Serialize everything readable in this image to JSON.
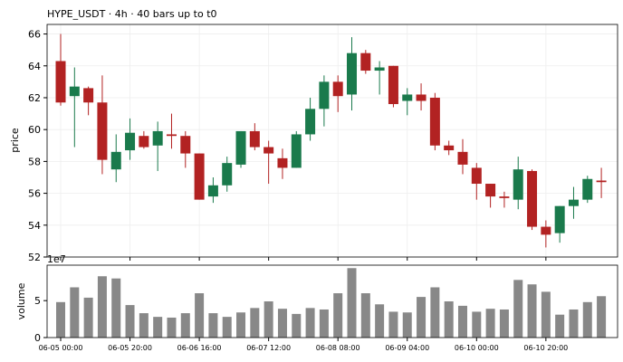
{
  "chart_data": [
    {
      "type": "candlestick",
      "title": "HYPE_USDT  ·  4h  ·  40 bars up to t0",
      "ylabel": "price",
      "open": [
        64.3,
        62.1,
        62.6,
        61.7,
        57.5,
        58.7,
        59.6,
        59.0,
        59.7,
        59.6,
        58.5,
        55.8,
        56.5,
        57.8,
        59.9,
        58.9,
        58.2,
        57.6,
        59.7,
        61.3,
        63.0,
        62.2,
        64.8,
        63.7,
        64.0,
        61.8,
        62.2,
        62.0,
        59.0,
        58.6,
        57.6,
        56.6,
        55.8,
        55.6,
        57.4,
        53.9,
        53.5,
        55.2,
        55.6,
        56.8
      ],
      "high": [
        66.0,
        63.9,
        62.7,
        63.4,
        59.7,
        60.7,
        59.9,
        60.5,
        61.0,
        59.9,
        58.5,
        57.0,
        58.3,
        59.9,
        60.4,
        59.3,
        58.8,
        59.9,
        62.0,
        63.4,
        63.4,
        65.8,
        65.0,
        64.3,
        64.0,
        62.6,
        62.9,
        62.3,
        59.3,
        59.4,
        57.9,
        56.6,
        56.1,
        58.3,
        57.5,
        54.3,
        55.2,
        56.4,
        57.1,
        57.6
      ],
      "low": [
        61.5,
        58.9,
        60.9,
        57.2,
        56.7,
        58.1,
        58.8,
        57.4,
        58.8,
        57.6,
        55.6,
        55.4,
        56.1,
        57.6,
        58.7,
        56.6,
        56.9,
        57.6,
        59.3,
        60.2,
        61.1,
        61.2,
        63.5,
        62.2,
        61.4,
        60.9,
        61.2,
        58.7,
        58.4,
        57.2,
        55.6,
        55.1,
        55.1,
        55.0,
        53.7,
        52.6,
        52.9,
        54.4,
        55.4,
        55.7
      ],
      "close": [
        61.7,
        62.7,
        61.7,
        58.1,
        58.6,
        59.8,
        58.9,
        59.9,
        59.6,
        58.5,
        55.6,
        56.5,
        57.9,
        59.9,
        58.9,
        58.5,
        57.6,
        59.7,
        61.3,
        63.0,
        62.1,
        64.8,
        63.7,
        63.9,
        61.6,
        62.2,
        61.8,
        59.0,
        58.7,
        57.8,
        56.6,
        55.8,
        55.7,
        57.5,
        53.9,
        53.4,
        55.2,
        55.6,
        56.9,
        56.7
      ],
      "ylim": [
        52,
        66.6
      ],
      "yticks": [
        52,
        54,
        56,
        58,
        60,
        62,
        64,
        66
      ],
      "grid": true,
      "up_color": "#1a7a4c",
      "down_color": "#b22222"
    },
    {
      "type": "bar",
      "ylabel": "volume",
      "offset_label": "1e7",
      "categories": [
        "06-05 00:00",
        null,
        null,
        null,
        null,
        "06-05 20:00",
        null,
        null,
        null,
        null,
        "06-06 16:00",
        null,
        null,
        null,
        null,
        "06-07 12:00",
        null,
        null,
        null,
        null,
        "06-08 08:00",
        null,
        null,
        null,
        null,
        "06-09 04:00",
        null,
        null,
        null,
        null,
        "06-10 00:00",
        null,
        null,
        null,
        null,
        "06-10 20:00",
        null,
        null,
        null,
        null
      ],
      "values": [
        4.8,
        6.8,
        5.4,
        8.3,
        8.0,
        4.4,
        3.3,
        2.8,
        2.7,
        3.3,
        6.0,
        3.3,
        2.8,
        3.4,
        4.0,
        4.9,
        3.9,
        3.2,
        4.0,
        3.8,
        6.0,
        9.4,
        6.0,
        4.5,
        3.5,
        3.4,
        5.5,
        6.8,
        4.9,
        4.3,
        3.5,
        3.9,
        3.8,
        7.8,
        7.2,
        6.2,
        3.1,
        3.8,
        4.8,
        5.6
      ],
      "ylim": [
        0,
        9.8
      ],
      "yticks": [
        0,
        5
      ],
      "color": "#888888"
    }
  ]
}
